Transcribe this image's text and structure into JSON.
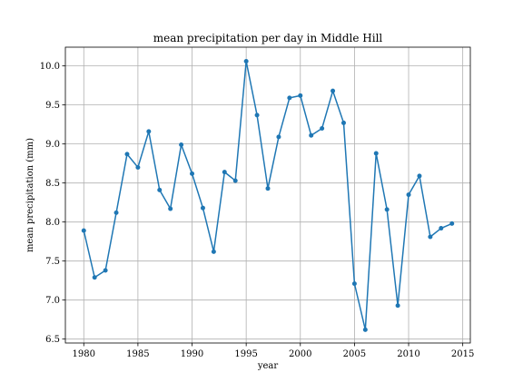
{
  "chart_data": {
    "type": "line",
    "title": "mean precipitation per day in Middle Hill",
    "xlabel": "year",
    "ylabel": "mean precipitation (mm)",
    "xlim": [
      1978.3,
      2015.7
    ],
    "ylim": [
      6.45,
      10.24
    ],
    "x_ticks": [
      1980,
      1985,
      1990,
      1995,
      2000,
      2005,
      2010,
      2015
    ],
    "x_tick_labels": [
      "1980",
      "1985",
      "1990",
      "1995",
      "2000",
      "2005",
      "2010",
      "2015"
    ],
    "y_ticks": [
      6.5,
      7.0,
      7.5,
      8.0,
      8.5,
      9.0,
      9.5,
      10.0
    ],
    "y_tick_labels": [
      "6.5",
      "7.0",
      "7.5",
      "8.0",
      "8.5",
      "9.0",
      "9.5",
      "10.0"
    ],
    "grid": true,
    "line_color": "#1f77b4",
    "series": [
      {
        "x": [
          1980,
          1981,
          1982,
          1983,
          1984,
          1985,
          1986,
          1987,
          1988,
          1989,
          1990,
          1991,
          1992,
          1993,
          1994,
          1995,
          1996,
          1997,
          1998,
          1999,
          2000,
          2001,
          2002,
          2003,
          2004,
          2005,
          2006,
          2007,
          2008,
          2009,
          2010,
          2011,
          2012,
          2013,
          2014
        ],
        "y": [
          7.89,
          7.29,
          7.38,
          8.12,
          8.87,
          8.7,
          9.16,
          8.41,
          8.17,
          8.99,
          8.62,
          8.18,
          7.62,
          8.64,
          8.53,
          10.06,
          9.37,
          8.43,
          9.09,
          9.59,
          9.62,
          9.11,
          9.2,
          9.68,
          9.27,
          7.21,
          6.62,
          8.88,
          8.16,
          6.93,
          8.35,
          8.59,
          7.81,
          7.92,
          7.98
        ]
      }
    ]
  }
}
